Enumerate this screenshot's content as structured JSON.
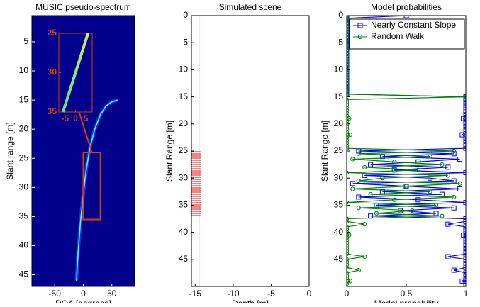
{
  "chart_data": [
    {
      "type": "image",
      "title": "MUSIC pseudo-spectrum",
      "xlabel": "DOA [degrees]",
      "ylabel": "Slant range [m]",
      "xlim": [
        -90,
        90
      ],
      "ylim": [
        0.5,
        47
      ],
      "xticks": [
        -50,
        0,
        50
      ],
      "yticks": [
        5,
        10,
        15,
        20,
        25,
        30,
        35,
        40,
        45
      ],
      "background": "#00008c",
      "color": "#6fe8ff",
      "ridge": {
        "doa": [
          60,
          50,
          40,
          30,
          20,
          12,
          5,
          0,
          -5,
          -9,
          -12
        ],
        "range": [
          15,
          15.3,
          16,
          17.5,
          20,
          23,
          27,
          31,
          36,
          41,
          46
        ]
      },
      "zoom": {
        "xlim": [
          0,
          30
        ],
        "ylim": [
          24,
          35.5
        ],
        "color": "#e03a10"
      },
      "inset": {
        "xlim": [
          -8,
          8
        ],
        "ylim": [
          25,
          35
        ],
        "xticks": [
          -5,
          0,
          5
        ],
        "yticks": [
          25,
          30,
          35
        ],
        "color": "#c8f060",
        "ridge": {
          "doa": [
            6,
            3,
            0,
            -3,
            -6
          ],
          "range": [
            25,
            27.5,
            30,
            32.5,
            35
          ]
        }
      }
    },
    {
      "type": "scene",
      "title": "Simulated scene",
      "xlabel": "Depth [m]",
      "ylabel": "Slant Range [m]",
      "xlim": [
        -15.5,
        0
      ],
      "ylim": [
        0,
        50
      ],
      "xticks": [
        -15,
        -10,
        -5,
        0
      ],
      "yticks": [
        0,
        5,
        10,
        15,
        20,
        25,
        30,
        35,
        40,
        45
      ],
      "vline": -14.5,
      "color": "#ff0000",
      "target": {
        "x": [
          -15.5,
          -14.2
        ],
        "y": [
          24.8,
          37.2
        ]
      }
    },
    {
      "type": "line",
      "title": "Model probabilities",
      "xlabel": "Model probability",
      "ylabel": "Slant Range [m]",
      "xlim": [
        0,
        1
      ],
      "ylim": [
        0,
        50
      ],
      "xticks": [
        0,
        0.5,
        1
      ],
      "yticks": [
        0,
        5,
        10,
        15,
        20,
        25,
        30,
        35,
        40,
        45
      ],
      "legend": "northeast",
      "y": [
        0,
        0.5,
        1,
        1.5,
        2,
        2.5,
        3,
        3.5,
        4,
        4.5,
        5,
        5.5,
        6,
        6.5,
        7,
        7.5,
        8,
        8.5,
        9,
        9.5,
        10,
        10.5,
        11,
        11.5,
        12,
        12.5,
        13,
        13.5,
        14,
        14.5,
        15,
        15.5,
        16,
        16.5,
        17,
        17.5,
        18,
        18.5,
        19,
        19.5,
        20,
        20.5,
        21,
        21.5,
        22,
        22.5,
        23,
        23.5,
        24,
        24.5,
        25,
        25.5,
        26,
        26.5,
        27,
        27.5,
        28,
        28.5,
        29,
        29.5,
        30,
        30.5,
        31,
        31.5,
        32,
        32.5,
        33,
        33.5,
        34,
        34.5,
        35,
        35.5,
        36,
        36.5,
        37,
        37.5,
        38,
        38.5,
        39,
        39.5,
        40,
        40.5,
        41,
        41.5,
        42,
        42.5,
        43,
        43.5,
        44,
        44.5,
        45,
        45.5,
        46,
        46.5,
        47,
        47.5,
        48,
        48.5,
        49,
        49.5
      ],
      "series": [
        {
          "name": "Nearly Constant Slope",
          "color": "#0000ff",
          "marker": "square",
          "values": [
            0.5,
            0,
            0,
            0,
            0,
            0,
            0,
            0,
            0,
            0,
            0,
            0,
            0,
            0,
            0,
            0,
            0,
            0,
            0,
            0,
            0,
            0,
            0,
            0,
            0,
            0,
            0,
            0,
            0,
            0,
            1,
            1,
            1,
            1,
            1,
            1,
            1,
            1,
            0.98,
            1,
            1,
            1,
            1,
            1,
            0.97,
            1,
            1,
            1,
            1,
            1,
            0.1,
            0.9,
            0.3,
            0.95,
            0.6,
            0.2,
            0.85,
            0.4,
            1,
            0.15,
            0.7,
            0.9,
            0.05,
            0.5,
            0.95,
            0.3,
            0.8,
            0.1,
            0.6,
            1,
            0.25,
            0.9,
            0.45,
            0.75,
            0.2,
            1,
            1,
            0.85,
            1,
            1,
            1,
            0.98,
            1,
            1,
            1,
            1,
            1,
            1,
            1,
            0.85,
            1,
            1,
            1,
            1,
            0.9,
            1,
            1,
            1,
            0.97,
            1
          ]
        },
        {
          "name": "Random Walk",
          "color": "#008000",
          "marker": "circle",
          "values": [
            0,
            0,
            0,
            0,
            0,
            0,
            0,
            0,
            0,
            0,
            0,
            0,
            0,
            0,
            0,
            0,
            0,
            0,
            0,
            0,
            0,
            0,
            0,
            0,
            0,
            0,
            0,
            0,
            0,
            0,
            1,
            0,
            0,
            0,
            0,
            0,
            0,
            0,
            0.02,
            0,
            0,
            0,
            0,
            0,
            0.03,
            0,
            0,
            0,
            0,
            0,
            0.9,
            0.1,
            0.7,
            0.05,
            0.4,
            0.8,
            0.15,
            0.6,
            0,
            0.85,
            0.3,
            0.1,
            0.95,
            0.5,
            0.05,
            0.7,
            0.2,
            0.9,
            0.4,
            0,
            0.75,
            0.1,
            0.55,
            0.25,
            0.8,
            0,
            0,
            0.15,
            0,
            0,
            0,
            0.02,
            0,
            0,
            0,
            0,
            0,
            0,
            0,
            0.15,
            0,
            0,
            0,
            0,
            0.1,
            0,
            0,
            0,
            0.03,
            0
          ]
        }
      ]
    }
  ]
}
